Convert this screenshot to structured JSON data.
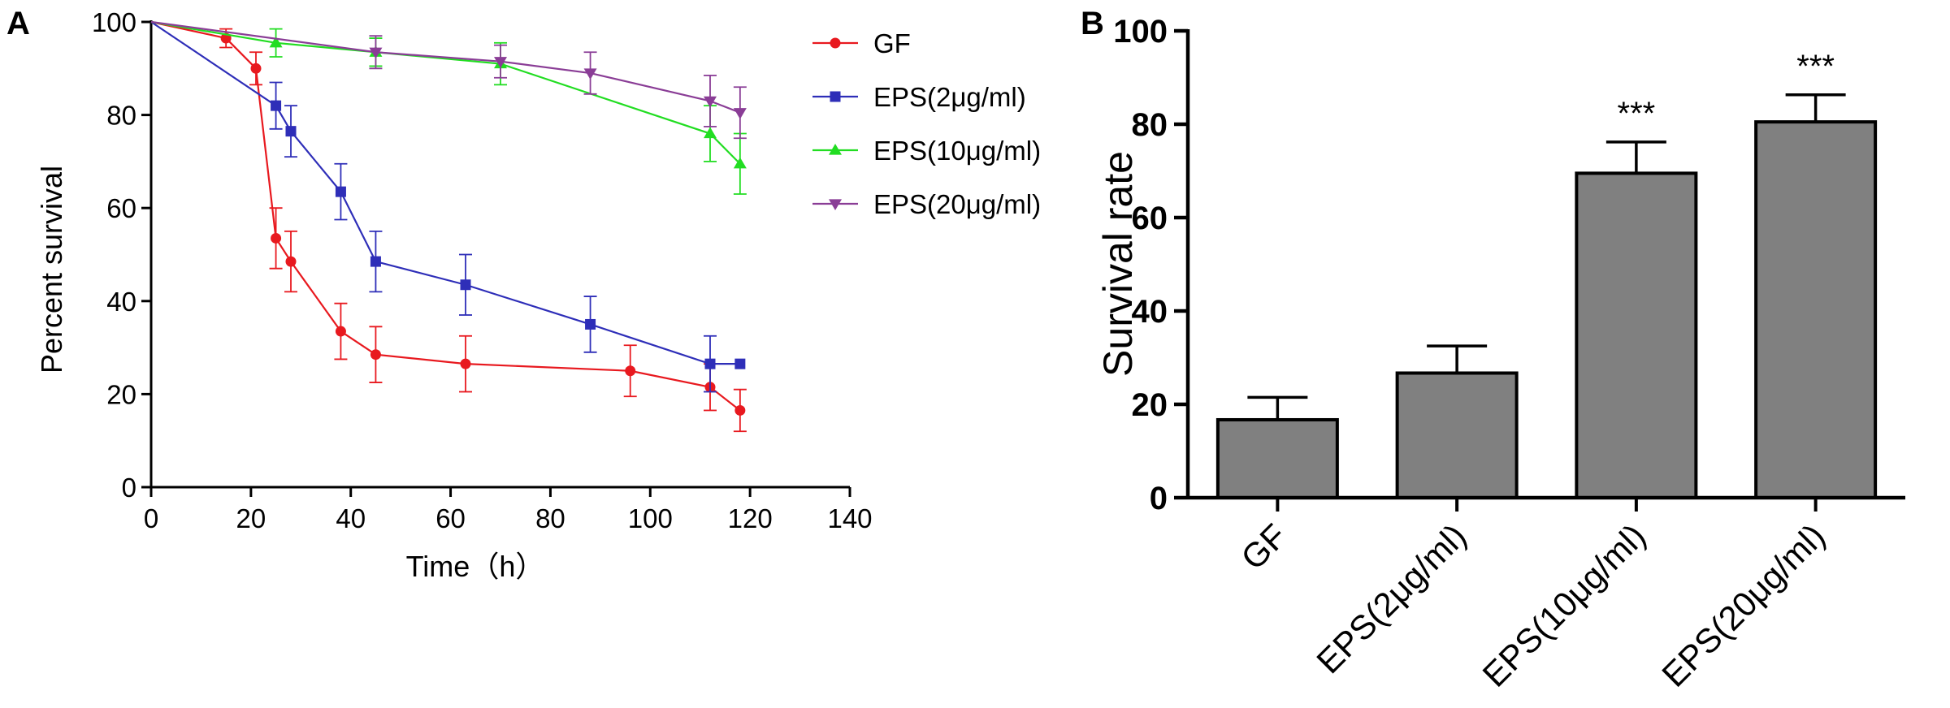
{
  "chart_data": [
    {
      "panel_label": "A",
      "type": "line",
      "xlabel": "Time（h）",
      "ylabel": "Percent survival",
      "xlim": [
        0,
        140
      ],
      "ylim": [
        0,
        100
      ],
      "xticks": [
        0,
        20,
        40,
        60,
        80,
        100,
        120,
        140
      ],
      "yticks": [
        0,
        20,
        40,
        60,
        80,
        100
      ],
      "legend_position": "top-right",
      "series": [
        {
          "name": "GF",
          "color": "#e8191f",
          "marker": "circle",
          "x": [
            0,
            15,
            21,
            25,
            28,
            38,
            45,
            63,
            96,
            112,
            118
          ],
          "y": [
            100,
            96.5,
            90,
            53.5,
            48.5,
            33.5,
            28.5,
            26.5,
            25,
            21.5,
            16.5
          ],
          "err": [
            0,
            2,
            3.5,
            6.5,
            6.5,
            6,
            6,
            6,
            5.5,
            5,
            4.5
          ]
        },
        {
          "name": "EPS(2μg/ml)",
          "color": "#2e2eb8",
          "marker": "square",
          "x": [
            0,
            25,
            28,
            38,
            45,
            63,
            88,
            112,
            118
          ],
          "y": [
            100,
            82,
            76.5,
            63.5,
            48.5,
            43.5,
            35,
            26.5,
            26.5
          ],
          "err": [
            0,
            5,
            5.5,
            6,
            6.5,
            6.5,
            6,
            6,
            0
          ]
        },
        {
          "name": "EPS(10μg/ml)",
          "color": "#22dd22",
          "marker": "triangle-up",
          "x": [
            0,
            25,
            45,
            70,
            112,
            118
          ],
          "y": [
            100,
            95.5,
            93.5,
            91,
            76,
            69.5
          ],
          "err": [
            0,
            3,
            3,
            4.5,
            6,
            6.5
          ]
        },
        {
          "name": "EPS(20μg/ml)",
          "color": "#8a3d96",
          "marker": "triangle-down",
          "x": [
            0,
            45,
            70,
            88,
            112,
            118
          ],
          "y": [
            100,
            93.5,
            91.5,
            89,
            83,
            80.5
          ],
          "err": [
            0,
            3.5,
            3.5,
            4.5,
            5.5,
            5.5
          ]
        }
      ]
    },
    {
      "panel_label": "B",
      "type": "bar",
      "ylabel": "Survival rate",
      "ylim": [
        0,
        100
      ],
      "yticks": [
        0,
        20,
        40,
        60,
        80,
        100
      ],
      "categories": [
        "GF",
        "EPS(2μg/ml)",
        "EPS(10μg/ml)",
        "EPS(20μg/ml)"
      ],
      "values": [
        16.7,
        26.7,
        69.5,
        80.5
      ],
      "err": [
        4.8,
        5.8,
        6.7,
        5.8
      ],
      "annotations": [
        "",
        "",
        "***",
        "***"
      ],
      "bar_color": "#808080"
    }
  ]
}
